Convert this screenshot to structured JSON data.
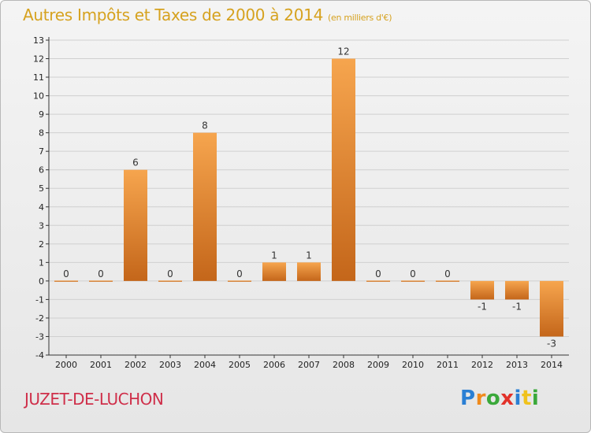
{
  "header": {
    "title": "Autres Impôts et Taxes de 2000 à 2014",
    "subtitle": "(en milliers d'€)"
  },
  "footer": {
    "commune": "JUZET-DE-LUCHON",
    "logo_letters": [
      {
        "ch": "P",
        "color": "#2a7fd4"
      },
      {
        "ch": "r",
        "color": "#f08a1c"
      },
      {
        "ch": "o",
        "color": "#3aa83a"
      },
      {
        "ch": "x",
        "color": "#e2322a"
      },
      {
        "ch": "i",
        "color": "#2a7fd4"
      },
      {
        "ch": "t",
        "color": "#f0c21c"
      },
      {
        "ch": "i",
        "color": "#3aa83a"
      }
    ]
  },
  "colors": {
    "bar_light": "#f6a54e",
    "bar_dark": "#c4661a",
    "title": "#d6a21f",
    "commune": "#cf2f4a",
    "axis": "#333333",
    "grid": "#d0d0d0"
  },
  "chart_data": {
    "type": "bar",
    "categories": [
      "2000",
      "2001",
      "2002",
      "2003",
      "2004",
      "2005",
      "2006",
      "2007",
      "2008",
      "2009",
      "2010",
      "2011",
      "2012",
      "2013",
      "2014"
    ],
    "values": [
      0,
      0,
      6,
      0,
      8,
      0,
      1,
      1,
      12,
      0,
      0,
      0,
      -1,
      -1,
      -3
    ],
    "ylim": [
      -4,
      13
    ],
    "yticks": [
      -4,
      -3,
      -2,
      -1,
      0,
      1,
      2,
      3,
      4,
      5,
      6,
      7,
      8,
      9,
      10,
      11,
      12,
      13
    ],
    "grid": true,
    "data_labels": true
  }
}
